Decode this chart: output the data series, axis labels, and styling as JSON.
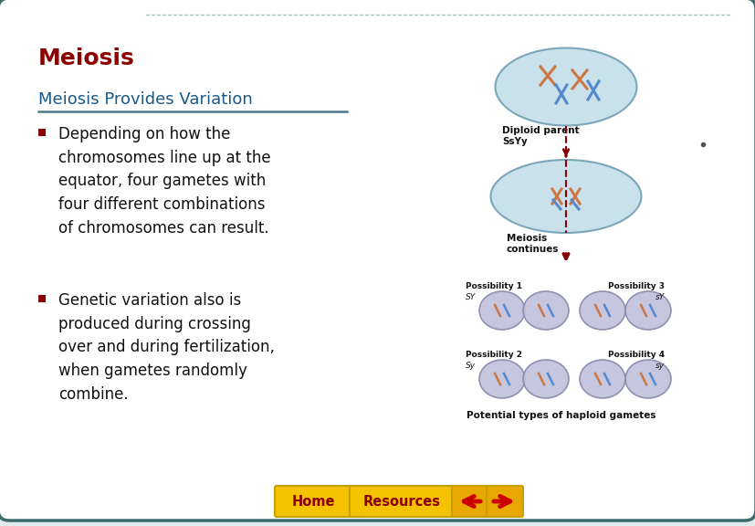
{
  "bg_color": "#e0ecec",
  "border_color": "#3a6b6b",
  "card_color": "#ffffff",
  "title": "Meiosis",
  "title_color": "#8b0000",
  "subtitle": "Meiosis Provides Variation",
  "subtitle_color": "#1a5a8a",
  "subtitle_underline_color": "#4a7a8a",
  "bullet_color": "#8b0000",
  "text_color": "#111111",
  "top_text_color": "#7a9a9a",
  "nav_bar_color": "#f5c200",
  "nav_home_text": "Home",
  "nav_resources_text": "Resources",
  "nav_text_color": "#8b0000",
  "nav_arrow_color": "#cc0000",
  "diagram_cell_color": "#c0dce8",
  "diagram_cell_border": "#6a9ab0",
  "diagram_small_cell_color": "#c0c0dc",
  "diagram_small_cell_border": "#8888aa",
  "diagram_label_color": "#111111",
  "diagram_arrow_color": "#880000",
  "diagram_dashed_color": "#880000"
}
